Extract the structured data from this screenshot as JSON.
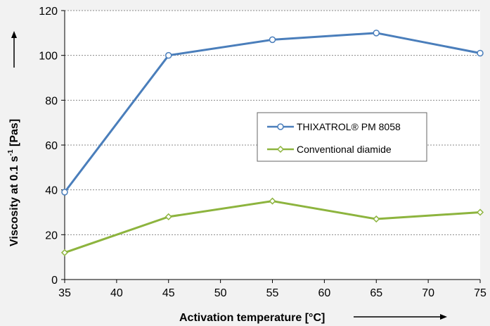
{
  "chart_data": {
    "type": "line",
    "title": "",
    "xlabel": "Activation temperature [°C]",
    "ylabel_main": "Viscosity at 0.1 s",
    "ylabel_sup": "-1",
    "ylabel_tail": " [Pas]",
    "x_ticks": [
      35,
      40,
      45,
      50,
      55,
      60,
      65,
      70,
      75
    ],
    "y_ticks": [
      0,
      20,
      40,
      60,
      80,
      100,
      120
    ],
    "xlim": [
      35,
      75
    ],
    "ylim": [
      0,
      120
    ],
    "grid": "horizontal",
    "legend_position": "center-right",
    "series": [
      {
        "name": "THIXATROL® PM 8058",
        "color": "#4a7ebb",
        "marker": "circle",
        "x": [
          35,
          45,
          55,
          65,
          75
        ],
        "y": [
          39,
          100,
          107,
          110,
          101
        ]
      },
      {
        "name": "Conventional diamide",
        "color": "#8db43e",
        "marker": "diamond",
        "x": [
          35,
          45,
          55,
          65,
          75
        ],
        "y": [
          12,
          28,
          35,
          27,
          30
        ]
      }
    ]
  }
}
